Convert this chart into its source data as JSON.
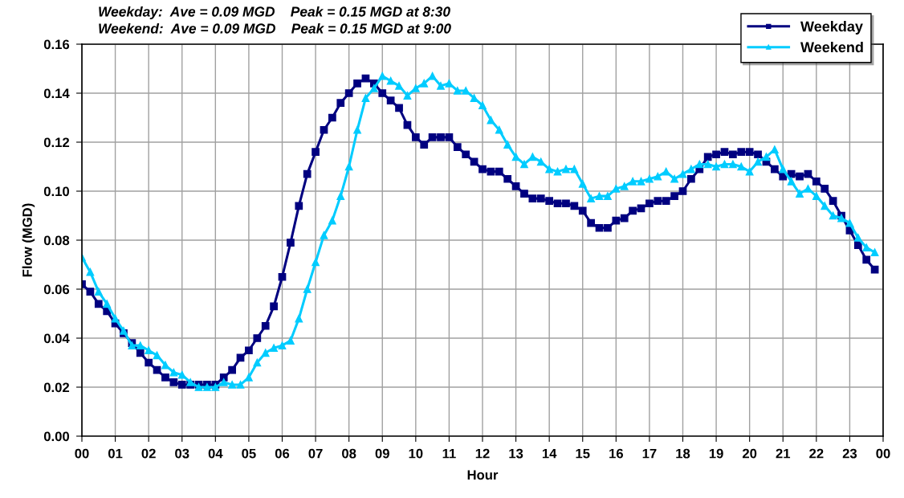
{
  "chart_data": {
    "type": "line",
    "annotations": [
      "Weekday:  Ave = 0.09 MGD    Peak = 0.15 MGD at 8:30",
      "Weekend:  Ave = 0.09 MGD    Peak = 0.15 MGD at 9:00"
    ],
    "xlabel": "Hour",
    "ylabel": "Flow (MGD)",
    "x": [
      0,
      0.25,
      0.5,
      0.75,
      1,
      1.25,
      1.5,
      1.75,
      2,
      2.25,
      2.5,
      2.75,
      3,
      3.25,
      3.5,
      3.75,
      4,
      4.25,
      4.5,
      4.75,
      5,
      5.25,
      5.5,
      5.75,
      6,
      6.25,
      6.5,
      6.75,
      7,
      7.25,
      7.5,
      7.75,
      8,
      8.25,
      8.5,
      8.75,
      9,
      9.25,
      9.5,
      9.75,
      10,
      10.25,
      10.5,
      10.75,
      11,
      11.25,
      11.5,
      11.75,
      12,
      12.25,
      12.5,
      12.75,
      13,
      13.25,
      13.5,
      13.75,
      14,
      14.25,
      14.5,
      14.75,
      15,
      15.25,
      15.5,
      15.75,
      16,
      16.25,
      16.5,
      16.75,
      17,
      17.25,
      17.5,
      17.75,
      18,
      18.25,
      18.5,
      18.75,
      19,
      19.25,
      19.5,
      19.75,
      20,
      20.25,
      20.5,
      20.75,
      21,
      21.25,
      21.5,
      21.75,
      22,
      22.25,
      22.5,
      22.75,
      23,
      23.25,
      23.5,
      23.75
    ],
    "series": [
      {
        "name": "Weekday",
        "color": "#000080",
        "marker": "square",
        "values": [
          0.062,
          0.059,
          0.054,
          0.051,
          0.046,
          0.042,
          0.038,
          0.034,
          0.03,
          0.027,
          0.024,
          0.022,
          0.021,
          0.021,
          0.021,
          0.021,
          0.021,
          0.024,
          0.027,
          0.032,
          0.035,
          0.04,
          0.045,
          0.053,
          0.065,
          0.079,
          0.094,
          0.107,
          0.116,
          0.125,
          0.13,
          0.136,
          0.14,
          0.144,
          0.146,
          0.144,
          0.14,
          0.137,
          0.134,
          0.127,
          0.122,
          0.119,
          0.122,
          0.122,
          0.122,
          0.118,
          0.115,
          0.112,
          0.109,
          0.108,
          0.108,
          0.105,
          0.102,
          0.099,
          0.097,
          0.097,
          0.096,
          0.095,
          0.095,
          0.094,
          0.092,
          0.087,
          0.085,
          0.085,
          0.088,
          0.089,
          0.092,
          0.093,
          0.095,
          0.096,
          0.096,
          0.098,
          0.1,
          0.105,
          0.109,
          0.114,
          0.115,
          0.116,
          0.115,
          0.116,
          0.116,
          0.115,
          0.112,
          0.109,
          0.106,
          0.107,
          0.106,
          0.107,
          0.104,
          0.101,
          0.096,
          0.09,
          0.084,
          0.078,
          0.072,
          0.068
        ]
      },
      {
        "name": "Weekend",
        "color": "#00ccff",
        "marker": "triangle",
        "values": [
          0.073,
          0.067,
          0.059,
          0.054,
          0.048,
          0.043,
          0.037,
          0.037,
          0.035,
          0.033,
          0.029,
          0.026,
          0.025,
          0.022,
          0.02,
          0.02,
          0.02,
          0.022,
          0.021,
          0.021,
          0.024,
          0.03,
          0.034,
          0.036,
          0.037,
          0.039,
          0.048,
          0.06,
          0.071,
          0.082,
          0.088,
          0.098,
          0.11,
          0.125,
          0.138,
          0.142,
          0.147,
          0.145,
          0.143,
          0.139,
          0.142,
          0.144,
          0.147,
          0.143,
          0.144,
          0.141,
          0.141,
          0.138,
          0.135,
          0.129,
          0.125,
          0.119,
          0.114,
          0.111,
          0.114,
          0.112,
          0.109,
          0.108,
          0.109,
          0.109,
          0.103,
          0.097,
          0.098,
          0.098,
          0.101,
          0.102,
          0.104,
          0.104,
          0.105,
          0.106,
          0.108,
          0.105,
          0.107,
          0.109,
          0.111,
          0.111,
          0.11,
          0.111,
          0.111,
          0.11,
          0.108,
          0.112,
          0.114,
          0.117,
          0.109,
          0.104,
          0.099,
          0.101,
          0.098,
          0.094,
          0.09,
          0.089,
          0.087,
          0.081,
          0.077,
          0.075
        ]
      }
    ],
    "xlim": [
      0,
      24
    ],
    "xticks": [
      {
        "value": 0,
        "label": "00"
      },
      {
        "value": 1,
        "label": "01"
      },
      {
        "value": 2,
        "label": "02"
      },
      {
        "value": 3,
        "label": "03"
      },
      {
        "value": 4,
        "label": "04"
      },
      {
        "value": 5,
        "label": "05"
      },
      {
        "value": 6,
        "label": "06"
      },
      {
        "value": 7,
        "label": "07"
      },
      {
        "value": 8,
        "label": "08"
      },
      {
        "value": 9,
        "label": "09"
      },
      {
        "value": 10,
        "label": "10"
      },
      {
        "value": 11,
        "label": "11"
      },
      {
        "value": 12,
        "label": "12"
      },
      {
        "value": 13,
        "label": "13"
      },
      {
        "value": 14,
        "label": "14"
      },
      {
        "value": 15,
        "label": "15"
      },
      {
        "value": 16,
        "label": "16"
      },
      {
        "value": 17,
        "label": "17"
      },
      {
        "value": 18,
        "label": "18"
      },
      {
        "value": 19,
        "label": "19"
      },
      {
        "value": 20,
        "label": "20"
      },
      {
        "value": 21,
        "label": "21"
      },
      {
        "value": 22,
        "label": "22"
      },
      {
        "value": 23,
        "label": "23"
      },
      {
        "value": 24,
        "label": "00"
      }
    ],
    "ylim": [
      0,
      0.16
    ],
    "yticks": [
      {
        "value": 0,
        "label": "0.00"
      },
      {
        "value": 0.02,
        "label": "0.02"
      },
      {
        "value": 0.04,
        "label": "0.04"
      },
      {
        "value": 0.06,
        "label": "0.06"
      },
      {
        "value": 0.08,
        "label": "0.08"
      },
      {
        "value": 0.1,
        "label": "0.10"
      },
      {
        "value": 0.12,
        "label": "0.12"
      },
      {
        "value": 0.14,
        "label": "0.14"
      },
      {
        "value": 0.16,
        "label": "0.16"
      }
    ],
    "grid": true,
    "legend": "top right",
    "line_style": "solid"
  }
}
